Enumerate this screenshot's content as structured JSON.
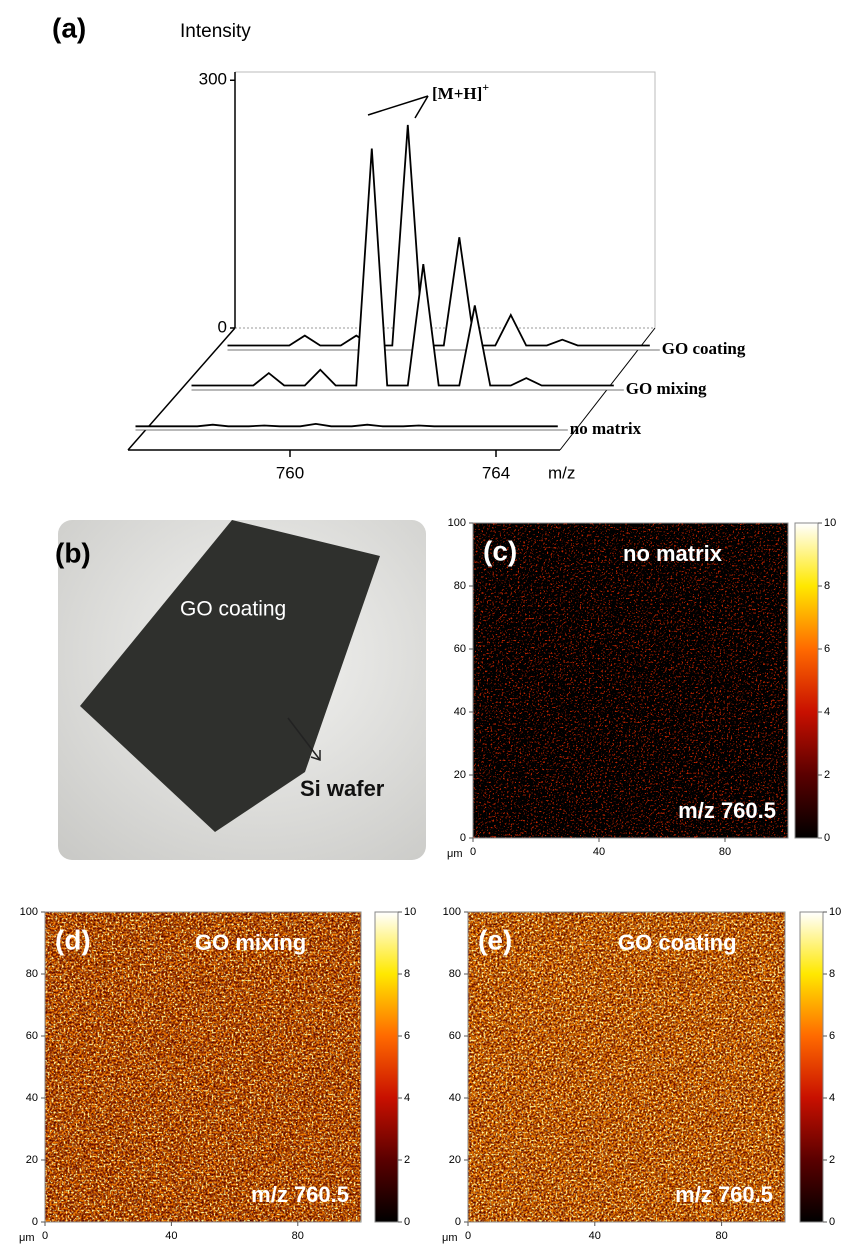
{
  "photo": {
    "panel_label": "(b)",
    "coating_label": "GO coating",
    "wafer_label": "Si wafer"
  },
  "chart_data": [
    {
      "type": "waterfall",
      "panel_label": "(a)",
      "ylabel": "Intensity",
      "xlabel": "m/z",
      "annotation": "[M+H]",
      "annotation_sup": "+",
      "x": [
        757.0,
        758.2,
        758.5,
        758.8,
        759.2,
        759.5,
        759.8,
        760.2,
        760.5,
        760.8,
        761.2,
        761.5,
        761.8,
        762.2,
        762.5,
        762.8,
        763.2,
        763.5,
        763.8,
        765.2
      ],
      "series": [
        {
          "name": "GO coating",
          "color": "#000000",
          "values": [
            3,
            3,
            15,
            3,
            3,
            15,
            3,
            3,
            270,
            3,
            3,
            134,
            3,
            3,
            40,
            3,
            3,
            10,
            3,
            3
          ]
        },
        {
          "name": "GO mixing",
          "color": "#000000",
          "values": [
            3,
            3,
            18,
            3,
            3,
            22,
            3,
            3,
            290,
            3,
            3,
            150,
            3,
            3,
            100,
            3,
            3,
            12,
            3,
            3
          ]
        },
        {
          "name": "no matrix",
          "color": "#000000",
          "values": [
            2,
            2,
            4,
            2,
            2,
            3,
            2,
            2,
            5,
            2,
            2,
            4,
            2,
            2,
            3,
            2,
            2,
            2,
            2,
            2
          ]
        }
      ],
      "xticks": [
        760,
        764
      ],
      "ylim": [
        0,
        310
      ],
      "yticks": [
        0,
        300
      ]
    },
    {
      "type": "heatmap",
      "panel_label": "(c)",
      "title": "no matrix",
      "annotation": "m/z 760.5",
      "xlabel": "μm",
      "xlim": [
        0,
        100
      ],
      "xticks": [
        0,
        40,
        80
      ],
      "ylim": [
        0,
        100
      ],
      "yticks": [
        0,
        20,
        40,
        60,
        80,
        100
      ],
      "clim": [
        0,
        10
      ],
      "cticks": [
        0,
        2,
        4,
        6,
        8,
        10
      ]
    },
    {
      "type": "heatmap",
      "panel_label": "(d)",
      "title": "GO mixing",
      "annotation": "m/z 760.5",
      "xlabel": "μm",
      "xlim": [
        0,
        100
      ],
      "xticks": [
        0,
        40,
        80
      ],
      "ylim": [
        0,
        100
      ],
      "yticks": [
        0,
        20,
        40,
        60,
        80,
        100
      ],
      "clim": [
        0,
        10
      ],
      "cticks": [
        0,
        2,
        4,
        6,
        8,
        10
      ]
    },
    {
      "type": "heatmap",
      "panel_label": "(e)",
      "title": "GO coating",
      "annotation": "m/z 760.5",
      "xlabel": "μm",
      "xlim": [
        0,
        100
      ],
      "xticks": [
        0,
        40,
        80
      ],
      "ylim": [
        0,
        100
      ],
      "yticks": [
        0,
        20,
        40,
        60,
        80,
        100
      ],
      "clim": [
        0,
        10
      ],
      "cticks": [
        0,
        2,
        4,
        6,
        8,
        10
      ]
    }
  ]
}
